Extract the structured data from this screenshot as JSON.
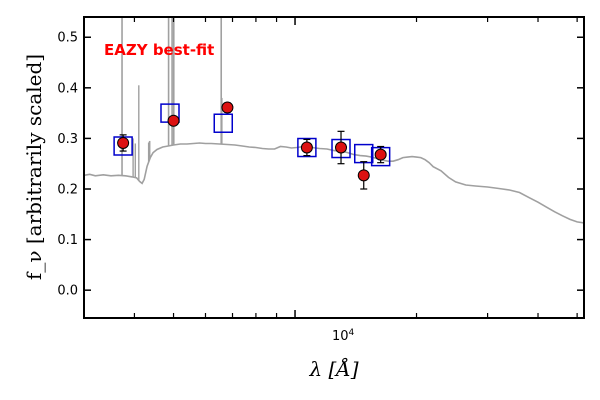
{
  "chart_data": {
    "type": "scatter",
    "title": "",
    "xlabel": "λ [Å]",
    "ylabel": "f_ν [arbitrarily scaled]",
    "xscale": "log",
    "xlim": [
      3000,
      52000
    ],
    "ylim": [
      -0.055,
      0.54
    ],
    "y_ticks": [
      0.0,
      0.1,
      0.2,
      0.3,
      0.4,
      0.5
    ],
    "y_tick_labels": [
      "0.0",
      "0.1",
      "0.2",
      "0.3",
      "0.4",
      "0.5"
    ],
    "x_major_ticks": [
      10000
    ],
    "x_major_tick_labels": [
      "10^4"
    ],
    "x_minor_ticks": [
      4000,
      5000,
      6000,
      7000,
      8000,
      9000,
      20000,
      30000,
      40000,
      50000
    ],
    "grid": false,
    "annotation": {
      "text": "EAZY best-fit",
      "color": "#ff0000"
    },
    "series": [
      {
        "kind": "template",
        "color": "#a0a0a0",
        "points": [
          [
            3000,
            0.227
          ],
          [
            3100,
            0.229
          ],
          [
            3200,
            0.226
          ],
          [
            3350,
            0.228
          ],
          [
            3500,
            0.226
          ],
          [
            3650,
            0.227
          ],
          [
            3800,
            0.226
          ],
          [
            3950,
            0.224
          ],
          [
            4050,
            0.222
          ],
          [
            4120,
            0.215
          ],
          [
            4180,
            0.211
          ],
          [
            4230,
            0.219
          ],
          [
            4300,
            0.245
          ],
          [
            4380,
            0.262
          ],
          [
            4450,
            0.272
          ],
          [
            4550,
            0.278
          ],
          [
            4700,
            0.283
          ],
          [
            4850,
            0.285
          ],
          [
            5000,
            0.287
          ],
          [
            5200,
            0.289
          ],
          [
            5400,
            0.289
          ],
          [
            5600,
            0.29
          ],
          [
            5800,
            0.291
          ],
          [
            6000,
            0.29
          ],
          [
            6200,
            0.29
          ],
          [
            6500,
            0.289
          ],
          [
            6800,
            0.288
          ],
          [
            7100,
            0.287
          ],
          [
            7400,
            0.285
          ],
          [
            7700,
            0.283
          ],
          [
            8000,
            0.282
          ],
          [
            8300,
            0.28
          ],
          [
            8600,
            0.279
          ],
          [
            8900,
            0.279
          ],
          [
            9200,
            0.284
          ],
          [
            9500,
            0.283
          ],
          [
            9800,
            0.281
          ],
          [
            10100,
            0.282
          ],
          [
            10500,
            0.284
          ],
          [
            11000,
            0.282
          ],
          [
            11500,
            0.28
          ],
          [
            12000,
            0.279
          ],
          [
            12500,
            0.276
          ],
          [
            13000,
            0.275
          ],
          [
            13500,
            0.272
          ],
          [
            14000,
            0.268
          ],
          [
            14500,
            0.266
          ],
          [
            15000,
            0.265
          ],
          [
            15500,
            0.263
          ],
          [
            16000,
            0.26
          ],
          [
            16500,
            0.257
          ],
          [
            17000,
            0.255
          ],
          [
            17500,
            0.255
          ],
          [
            18000,
            0.258
          ],
          [
            18500,
            0.262
          ],
          [
            19000,
            0.263
          ],
          [
            19500,
            0.264
          ],
          [
            20000,
            0.263
          ],
          [
            20500,
            0.262
          ],
          [
            21000,
            0.258
          ],
          [
            21500,
            0.252
          ],
          [
            22000,
            0.244
          ],
          [
            23000,
            0.236
          ],
          [
            24000,
            0.223
          ],
          [
            25000,
            0.214
          ],
          [
            26500,
            0.208
          ],
          [
            28000,
            0.206
          ],
          [
            30000,
            0.204
          ],
          [
            32000,
            0.201
          ],
          [
            34000,
            0.198
          ],
          [
            36000,
            0.193
          ],
          [
            38000,
            0.183
          ],
          [
            40000,
            0.174
          ],
          [
            42000,
            0.164
          ],
          [
            44000,
            0.155
          ],
          [
            46000,
            0.147
          ],
          [
            48000,
            0.14
          ],
          [
            50000,
            0.135
          ],
          [
            52000,
            0.133
          ]
        ],
        "emission_lines": [
          [
            3727,
            0.6
          ],
          [
            4340,
            0.292
          ],
          [
            4363,
            0.295
          ],
          [
            4861,
            0.6
          ],
          [
            4959,
            0.6
          ],
          [
            5007,
            0.6
          ],
          [
            6563,
            0.6
          ],
          [
            6584,
            0.38
          ]
        ],
        "line_features": [
          [
            4101,
            0.405
          ],
          [
            3970,
            0.3
          ],
          [
            4020,
            0.29
          ]
        ]
      },
      {
        "kind": "model_photometry",
        "marker": "open-square",
        "color": "#0000cc",
        "points": [
          [
            3750,
            0.285
          ],
          [
            4900,
            0.35
          ],
          [
            6640,
            0.33
          ],
          [
            10700,
            0.282
          ],
          [
            13000,
            0.28
          ],
          [
            14800,
            0.27
          ],
          [
            16300,
            0.264
          ]
        ]
      },
      {
        "kind": "observed_photometry",
        "marker": "filled-circle-errorbar",
        "color": "#dd1111",
        "points": [
          [
            3750,
            0.291,
            0.016
          ],
          [
            5000,
            0.335,
            0.005
          ],
          [
            6800,
            0.361,
            0.009
          ],
          [
            10700,
            0.282,
            0.016
          ],
          [
            13000,
            0.282,
            0.032
          ],
          [
            14800,
            0.227,
            0.027
          ],
          [
            16300,
            0.268,
            0.016
          ]
        ]
      }
    ]
  }
}
